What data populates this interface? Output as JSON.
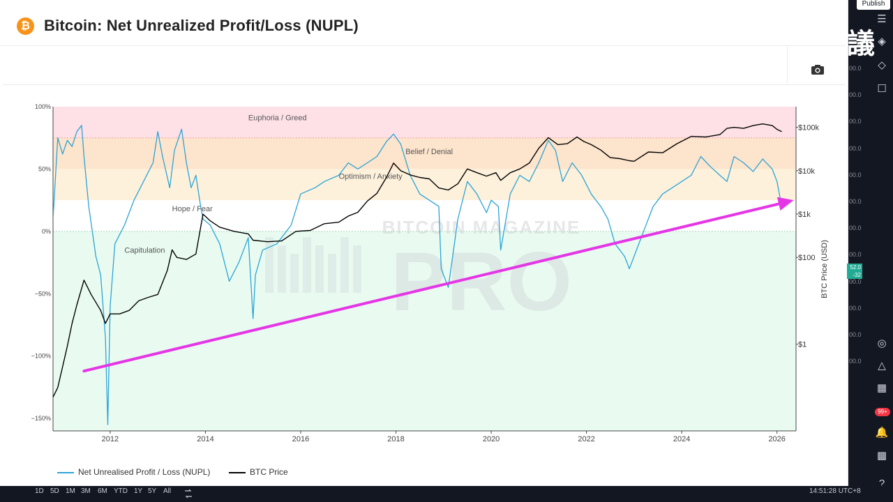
{
  "page": {
    "title": "Bitcoin: Net Unrealized Profit/Loss (NUPL)",
    "logo_symbol": "₿",
    "publish_label": "Publish",
    "cjk_label": "議",
    "clock": "14:51:28 UTC+8",
    "badge": "99+",
    "price_box": [
      "52.0",
      "-32"
    ],
    "ranges": [
      "1D",
      "5D",
      "1M",
      "3M",
      "6M",
      "YTD",
      "1Y",
      "5Y",
      "All"
    ],
    "right_numbers": [
      "00.0",
      "00.0",
      "00.0",
      "00.0",
      "00.0",
      "00.0",
      "00.0",
      "00.0",
      "00.0",
      "00.0",
      "00.0",
      "00.0"
    ],
    "icons": [
      "watchlist-icon",
      "alerts-icon",
      "layers-icon",
      "chat-icon",
      "target-icon",
      "triangle-icon",
      "calendar-icon",
      "notifications-icon",
      "grid-icon",
      "help-icon"
    ]
  },
  "colors": {
    "nupl": "#2aa4d6",
    "price": "#000000",
    "arrow": "#e536e6",
    "euphoria": "#fde1e7",
    "belief": "#fde4cc",
    "optimism": "#fdf1dc",
    "hope": "#ffffff",
    "capitulation": "#e9fbf1"
  },
  "chart_data": {
    "type": "line",
    "title": "Bitcoin: Net Unrealized Profit/Loss (NUPL)",
    "xlabel": "",
    "ylabel_left": "",
    "ylabel_right": "BTC Price (USD)",
    "x_range": [
      2010.8,
      2026.4
    ],
    "ylim_left": [
      -160,
      100
    ],
    "ylim_right_log": [
      0.01,
      300000
    ],
    "left_ticks": [
      {
        "v": 100,
        "label": "100%"
      },
      {
        "v": 50,
        "label": "50%"
      },
      {
        "v": 0,
        "label": "0%"
      },
      {
        "v": -50,
        "label": "−50%"
      },
      {
        "v": -100,
        "label": "−100%"
      },
      {
        "v": -150,
        "label": "−150%"
      }
    ],
    "right_ticks": [
      {
        "v": 100000,
        "label": "$100k"
      },
      {
        "v": 10000,
        "label": "$10k"
      },
      {
        "v": 1000,
        "label": "$1k"
      },
      {
        "v": 100,
        "label": "$100"
      },
      {
        "v": 1,
        "label": "$1"
      }
    ],
    "x_ticks": [
      {
        "v": 2012,
        "label": "2012"
      },
      {
        "v": 2014,
        "label": "2014"
      },
      {
        "v": 2016,
        "label": "2016"
      },
      {
        "v": 2018,
        "label": "2018"
      },
      {
        "v": 2020,
        "label": "2020"
      },
      {
        "v": 2022,
        "label": "2022"
      },
      {
        "v": 2024,
        "label": "2024"
      },
      {
        "v": 2026,
        "label": "2026"
      }
    ],
    "zones": [
      {
        "name": "Euphoria / Greed",
        "from": 75,
        "to": 100,
        "color": "#fde1e7",
        "label_x": 2014.9,
        "label_y": 89
      },
      {
        "name": "Belief / Denial",
        "from": 50,
        "to": 75,
        "color": "#fde4cc",
        "label_x": 2018.2,
        "label_y": 62
      },
      {
        "name": "Optimism / Anxiety",
        "from": 25,
        "to": 50,
        "color": "#fdf1dc",
        "label_x": 2016.8,
        "label_y": 42
      },
      {
        "name": "Hope / Fear",
        "from": 0,
        "to": 25,
        "color": "#ffffff",
        "label_x": 2013.3,
        "label_y": 16
      },
      {
        "name": "Capitulation",
        "from": -160,
        "to": 0,
        "color": "#e9fbf1",
        "label_x": 2012.3,
        "label_y": -17
      }
    ],
    "series": [
      {
        "name": "Net Unrealised Profit / Loss (NUPL)",
        "axis": "left",
        "color": "#2aa4d6",
        "x": [
          2010.8,
          2010.9,
          2011.0,
          2011.1,
          2011.2,
          2011.3,
          2011.4,
          2011.45,
          2011.55,
          2011.7,
          2011.8,
          2011.9,
          2011.95,
          2012.0,
          2012.1,
          2012.3,
          2012.5,
          2012.7,
          2012.9,
          2013.0,
          2013.1,
          2013.25,
          2013.35,
          2013.5,
          2013.6,
          2013.7,
          2013.8,
          2013.9,
          2013.95,
          2014.1,
          2014.3,
          2014.5,
          2014.7,
          2014.9,
          2015.0,
          2015.05,
          2015.2,
          2015.5,
          2015.8,
          2016.0,
          2016.3,
          2016.5,
          2016.8,
          2017.0,
          2017.2,
          2017.4,
          2017.6,
          2017.8,
          2017.95,
          2018.1,
          2018.3,
          2018.5,
          2018.7,
          2018.9,
          2018.95,
          2019.1,
          2019.3,
          2019.5,
          2019.7,
          2019.9,
          2020.0,
          2020.15,
          2020.2,
          2020.4,
          2020.6,
          2020.8,
          2021.0,
          2021.2,
          2021.35,
          2021.5,
          2021.7,
          2021.9,
          2022.1,
          2022.3,
          2022.45,
          2022.6,
          2022.8,
          2022.9,
          2023.0,
          2023.2,
          2023.4,
          2023.6,
          2023.8,
          2024.0,
          2024.2,
          2024.4,
          2024.6,
          2024.8,
          2024.95,
          2025.1,
          2025.3,
          2025.5,
          2025.7,
          2025.9,
          2026.0,
          2026.1
        ],
        "y": [
          10,
          75,
          62,
          73,
          68,
          80,
          85,
          60,
          20,
          -20,
          -35,
          -85,
          -155,
          -60,
          -10,
          5,
          25,
          40,
          55,
          80,
          60,
          35,
          65,
          82,
          55,
          35,
          45,
          20,
          10,
          5,
          -10,
          -40,
          -25,
          -5,
          -70,
          -35,
          -15,
          -10,
          5,
          30,
          35,
          40,
          45,
          55,
          50,
          55,
          60,
          72,
          78,
          70,
          45,
          30,
          25,
          20,
          -30,
          -45,
          10,
          40,
          30,
          15,
          25,
          20,
          -15,
          30,
          45,
          40,
          55,
          73,
          65,
          40,
          55,
          45,
          30,
          20,
          10,
          -10,
          -20,
          -30,
          -20,
          0,
          20,
          30,
          35,
          40,
          45,
          60,
          52,
          45,
          40,
          60,
          55,
          48,
          58,
          50,
          40,
          20
        ]
      },
      {
        "name": "BTC Price",
        "axis": "right",
        "color": "#000000",
        "x": [
          2010.8,
          2010.9,
          2011.0,
          2011.1,
          2011.2,
          2011.3,
          2011.45,
          2011.6,
          2011.8,
          2011.9,
          2012.0,
          2012.2,
          2012.4,
          2012.6,
          2012.8,
          2013.0,
          2013.2,
          2013.3,
          2013.4,
          2013.6,
          2013.8,
          2013.95,
          2014.1,
          2014.3,
          2014.6,
          2014.9,
          2015.0,
          2015.3,
          2015.6,
          2015.9,
          2016.2,
          2016.5,
          2016.8,
          2017.0,
          2017.2,
          2017.4,
          2017.6,
          2017.8,
          2017.95,
          2018.1,
          2018.3,
          2018.5,
          2018.7,
          2018.9,
          2019.1,
          2019.3,
          2019.5,
          2019.7,
          2019.9,
          2020.1,
          2020.2,
          2020.4,
          2020.6,
          2020.8,
          2021.0,
          2021.2,
          2021.4,
          2021.6,
          2021.8,
          2021.95,
          2022.1,
          2022.3,
          2022.5,
          2022.7,
          2022.9,
          2023.0,
          2023.3,
          2023.6,
          2023.9,
          2024.2,
          2024.5,
          2024.8,
          2024.95,
          2025.1,
          2025.3,
          2025.5,
          2025.7,
          2025.9,
          2026.0,
          2026.1
        ],
        "y": [
          0.06,
          0.1,
          0.3,
          0.9,
          3,
          8,
          30,
          14,
          6,
          3,
          5,
          5,
          6,
          10,
          12,
          14,
          50,
          150,
          100,
          90,
          120,
          1000,
          700,
          500,
          400,
          350,
          250,
          230,
          240,
          400,
          420,
          600,
          650,
          900,
          1100,
          2000,
          3000,
          7000,
          15000,
          10000,
          8000,
          7000,
          6500,
          4000,
          3600,
          5000,
          11000,
          9000,
          7500,
          9000,
          6000,
          9000,
          11000,
          15000,
          33000,
          58000,
          40000,
          42000,
          60000,
          47000,
          40000,
          30000,
          20000,
          19000,
          17000,
          16500,
          27000,
          26000,
          42000,
          62000,
          60000,
          68000,
          95000,
          100000,
          95000,
          110000,
          120000,
          110000,
          90000,
          80000
        ]
      }
    ],
    "trend_arrow": {
      "from": {
        "x": 2011.45,
        "y": -112
      },
      "to": {
        "x": 2026.35,
        "y": 25
      }
    },
    "legend": [
      "Net Unrealised Profit / Loss (NUPL)",
      "BTC Price"
    ],
    "watermark": [
      "BITCOIN MAGAZINE",
      "PRO"
    ],
    "grid": false
  }
}
